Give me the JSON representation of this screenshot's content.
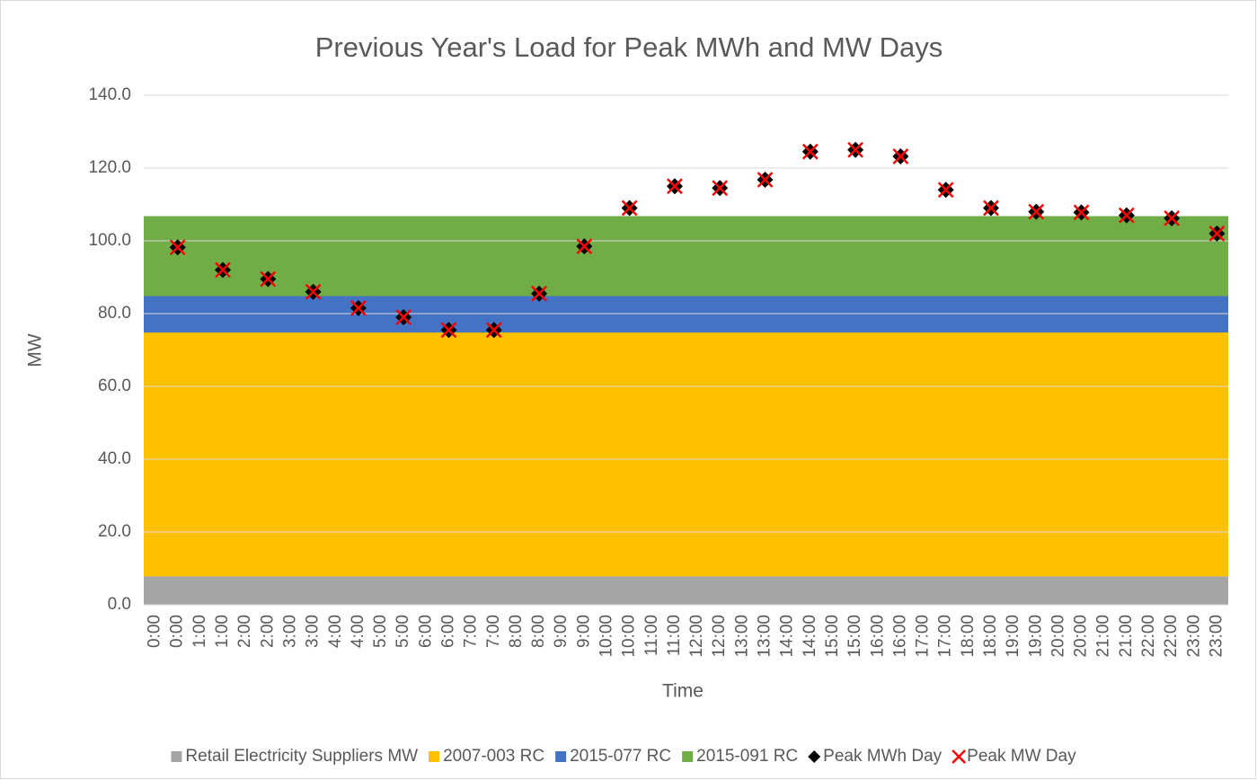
{
  "chart_data": {
    "type": "stacked_area_scatter",
    "title": "Previous Year's Load for Peak MWh and MW Days",
    "xlabel": "Time",
    "ylabel": "MW",
    "categories": [
      "0:00",
      "0:00",
      "1:00",
      "1:00",
      "2:00",
      "2:00",
      "3:00",
      "3:00",
      "4:00",
      "4:00",
      "5:00",
      "5:00",
      "6:00",
      "6:00",
      "7:00",
      "7:00",
      "8:00",
      "8:00",
      "9:00",
      "9:00",
      "10:00",
      "10:00",
      "11:00",
      "11:00",
      "12:00",
      "12:00",
      "13:00",
      "13:00",
      "14:00",
      "14:00",
      "15:00",
      "15:00",
      "16:00",
      "16:00",
      "17:00",
      "17:00",
      "18:00",
      "18:00",
      "19:00",
      "19:00",
      "20:00",
      "20:00",
      "21:00",
      "21:00",
      "22:00",
      "22:00",
      "23:00",
      "23:00"
    ],
    "ylim": [
      0,
      140
    ],
    "yticks": [
      {
        "value": 0,
        "label": "0.0"
      },
      {
        "value": 20,
        "label": "20.0"
      },
      {
        "value": 40,
        "label": "40.0"
      },
      {
        "value": 60,
        "label": "60.0"
      },
      {
        "value": 80,
        "label": "80.0"
      },
      {
        "value": 100,
        "label": "100.0"
      },
      {
        "value": 120,
        "label": "120.0"
      },
      {
        "value": 140,
        "label": "140.0"
      }
    ],
    "grid": true,
    "legend": "bottom",
    "series": [
      {
        "name": "Retail Electricity Suppliers MW",
        "kind": "area",
        "color": "#a5a5a5",
        "values": [
          7.8,
          7.8,
          7.8,
          7.8,
          7.8,
          7.8,
          7.8,
          7.8,
          7.8,
          7.8,
          7.8,
          7.8,
          7.8,
          7.8,
          7.8,
          7.8,
          7.8,
          7.8,
          7.8,
          7.8,
          7.8,
          7.8,
          7.8,
          7.8,
          7.8,
          7.8,
          7.8,
          7.8,
          7.8,
          7.8,
          7.8,
          7.8,
          7.8,
          7.8,
          7.8,
          7.8,
          7.8,
          7.8,
          7.8,
          7.8,
          7.8,
          7.8,
          7.8,
          7.8,
          7.8,
          7.8,
          7.8,
          7.8
        ]
      },
      {
        "name": "2007-003 RC",
        "kind": "area",
        "color": "#ffc000",
        "values": [
          67,
          67,
          67,
          67,
          67,
          67,
          67,
          67,
          67,
          67,
          67,
          67,
          67,
          67,
          67,
          67,
          67,
          67,
          67,
          67,
          67,
          67,
          67,
          67,
          67,
          67,
          67,
          67,
          67,
          67,
          67,
          67,
          67,
          67,
          67,
          67,
          67,
          67,
          67,
          67,
          67,
          67,
          67,
          67,
          67,
          67,
          67,
          67
        ]
      },
      {
        "name": "2015-077 RC",
        "kind": "area",
        "color": "#4472c4",
        "values": [
          10,
          10,
          10,
          10,
          10,
          10,
          10,
          10,
          10,
          10,
          10,
          10,
          10,
          10,
          10,
          10,
          10,
          10,
          10,
          10,
          10,
          10,
          10,
          10,
          10,
          10,
          10,
          10,
          10,
          10,
          10,
          10,
          10,
          10,
          10,
          10,
          10,
          10,
          10,
          10,
          10,
          10,
          10,
          10,
          10,
          10,
          10,
          10
        ]
      },
      {
        "name": "2015-091 RC",
        "kind": "area",
        "color": "#70ad47",
        "values": [
          22,
          22,
          22,
          22,
          22,
          22,
          22,
          22,
          22,
          22,
          22,
          22,
          22,
          22,
          22,
          22,
          22,
          22,
          22,
          22,
          22,
          22,
          22,
          22,
          22,
          22,
          22,
          22,
          22,
          22,
          22,
          22,
          22,
          22,
          22,
          22,
          22,
          22,
          22,
          22,
          22,
          22,
          22,
          22,
          22,
          22,
          22,
          22
        ]
      },
      {
        "name": "Peak MWh Day",
        "kind": "diamond",
        "color": "#000000",
        "values": [
          null,
          98.2,
          null,
          92,
          null,
          89.5,
          null,
          86,
          null,
          81.5,
          null,
          79,
          null,
          75.5,
          null,
          75.5,
          null,
          85.5,
          null,
          98.5,
          null,
          109,
          null,
          115,
          null,
          114.5,
          null,
          116.8,
          null,
          124.5,
          null,
          125,
          null,
          123.2,
          null,
          114,
          null,
          109,
          null,
          108,
          null,
          107.8,
          null,
          107,
          null,
          106.2,
          null,
          102
        ]
      },
      {
        "name": "Peak MW Day",
        "kind": "cross",
        "color": "#ff0000",
        "values": [
          null,
          98.2,
          null,
          92,
          null,
          89.5,
          null,
          86,
          null,
          81.5,
          null,
          79,
          null,
          75.5,
          null,
          75.5,
          null,
          85.5,
          null,
          98.5,
          null,
          109,
          null,
          115,
          null,
          114.5,
          null,
          116.8,
          null,
          124.5,
          null,
          125,
          null,
          123.2,
          null,
          114,
          null,
          109,
          null,
          108,
          null,
          107.8,
          null,
          107,
          null,
          106.2,
          null,
          102
        ]
      }
    ]
  }
}
